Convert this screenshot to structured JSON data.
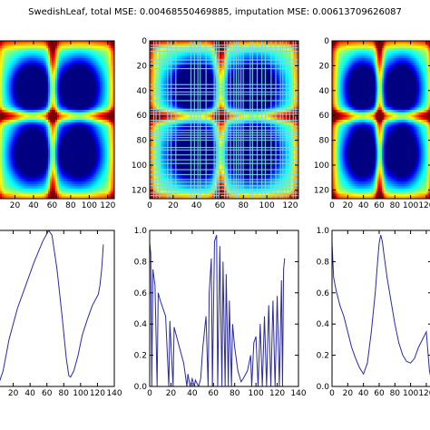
{
  "figure": {
    "title": "SwedishLeaf, total MSE: 0.00468550469885, imputation MSE: 0.00613709626087"
  },
  "chart_data": [
    {
      "type": "heatmap",
      "panel": "top-left",
      "colormap": "jet",
      "grid": false,
      "xlim": [
        0,
        127
      ],
      "ylim": [
        127,
        0
      ],
      "xticks": [
        {
          "v": 0,
          "label": "0"
        },
        {
          "v": 20,
          "label": "20"
        },
        {
          "v": 40,
          "label": "40"
        },
        {
          "v": 60,
          "label": "60"
        },
        {
          "v": 80,
          "label": "80"
        },
        {
          "v": 100,
          "label": "100"
        },
        {
          "v": 120,
          "label": "120"
        }
      ],
      "yticks": [],
      "description": "smooth 128x128 recurrence matrix, low (blue) lobes centred near 40 and 90, high (red) bands near index 60 and at corners",
      "blobs": [
        {
          "cx": 38,
          "cy": 38,
          "s": 16,
          "a": 0.95
        },
        {
          "cx": 90,
          "cy": 38,
          "s": 17,
          "a": 0.92
        },
        {
          "cx": 38,
          "cy": 92,
          "s": 17,
          "a": 0.92
        },
        {
          "cx": 90,
          "cy": 92,
          "s": 17,
          "a": 0.95
        }
      ],
      "bands": [
        {
          "pos": 61,
          "w": 3.5,
          "a": 0.55
        },
        {
          "pos": 0,
          "w": 4,
          "a": 0.3
        },
        {
          "pos": 127,
          "w": 3,
          "a": 0.25
        }
      ],
      "base": 0.55
    },
    {
      "type": "heatmap",
      "panel": "top-middle",
      "colormap": "jet",
      "grid": false,
      "xlim": [
        0,
        127
      ],
      "ylim": [
        127,
        0
      ],
      "xticks": [
        {
          "v": 0,
          "label": "0"
        },
        {
          "v": 20,
          "label": "20"
        },
        {
          "v": 40,
          "label": "40"
        },
        {
          "v": 60,
          "label": "60"
        },
        {
          "v": 80,
          "label": "80"
        },
        {
          "v": 100,
          "label": "100"
        },
        {
          "v": 120,
          "label": "120"
        }
      ],
      "yticks": [
        {
          "v": 0,
          "label": "0"
        },
        {
          "v": 20,
          "label": "20"
        },
        {
          "v": 40,
          "label": "40"
        },
        {
          "v": 60,
          "label": "60"
        },
        {
          "v": 80,
          "label": "80"
        },
        {
          "v": 100,
          "label": "100"
        },
        {
          "v": 120,
          "label": "120"
        }
      ],
      "description": "same matrix with many missing-index stripes (light cyan/yellow lines)",
      "blobs": [
        {
          "cx": 38,
          "cy": 38,
          "s": 16,
          "a": 0.95
        },
        {
          "cx": 90,
          "cy": 38,
          "s": 17,
          "a": 0.92
        },
        {
          "cx": 38,
          "cy": 92,
          "s": 17,
          "a": 0.92
        },
        {
          "cx": 90,
          "cy": 92,
          "s": 17,
          "a": 0.95
        }
      ],
      "bands": [
        {
          "pos": 61,
          "w": 3.5,
          "a": 0.55
        },
        {
          "pos": 0,
          "w": 4,
          "a": 0.3
        },
        {
          "pos": 127,
          "w": 3,
          "a": 0.25
        }
      ],
      "base": 0.55,
      "stripes": [
        3,
        5,
        8,
        15,
        18,
        22,
        35,
        38,
        41,
        43,
        48,
        55,
        57,
        59,
        64,
        66,
        69,
        72,
        74,
        76,
        78,
        80,
        86,
        88,
        92,
        96,
        99,
        104,
        108,
        112,
        114,
        117,
        120,
        123,
        125
      ]
    },
    {
      "type": "heatmap",
      "panel": "top-right",
      "colormap": "jet",
      "grid": false,
      "xlim": [
        0,
        127
      ],
      "ylim": [
        127,
        0
      ],
      "xticks": [
        {
          "v": 0,
          "label": "0"
        },
        {
          "v": 20,
          "label": "20"
        },
        {
          "v": 40,
          "label": "40"
        },
        {
          "v": 60,
          "label": "60"
        },
        {
          "v": 80,
          "label": "80"
        },
        {
          "v": 100,
          "label": "100"
        },
        {
          "v": 120,
          "label": "120"
        }
      ],
      "yticks": [
        {
          "v": 0,
          "label": "0"
        },
        {
          "v": 20,
          "label": "20"
        },
        {
          "v": 40,
          "label": "40"
        },
        {
          "v": 60,
          "label": "60"
        },
        {
          "v": 80,
          "label": "80"
        },
        {
          "v": 100,
          "label": "100"
        },
        {
          "v": 120,
          "label": "120"
        }
      ],
      "description": "imputed smooth recurrence matrix",
      "blobs": [
        {
          "cx": 38,
          "cy": 38,
          "s": 16,
          "a": 0.95
        },
        {
          "cx": 90,
          "cy": 38,
          "s": 17,
          "a": 0.92
        },
        {
          "cx": 38,
          "cy": 92,
          "s": 17,
          "a": 0.92
        },
        {
          "cx": 90,
          "cy": 92,
          "s": 17,
          "a": 0.95
        }
      ],
      "bands": [
        {
          "pos": 61,
          "w": 3.5,
          "a": 0.55
        },
        {
          "pos": 0,
          "w": 4,
          "a": 0.3
        },
        {
          "pos": 127,
          "w": 3,
          "a": 0.25
        }
      ],
      "base": 0.55
    },
    {
      "type": "line",
      "panel": "bottom-left",
      "grid": false,
      "color": "#2b2ba0",
      "xlim": [
        0,
        140
      ],
      "ylim": [
        0,
        1.0
      ],
      "xticks": [
        {
          "v": 0,
          "label": "0"
        },
        {
          "v": 20,
          "label": "20"
        },
        {
          "v": 40,
          "label": "40"
        },
        {
          "v": 60,
          "label": "60"
        },
        {
          "v": 80,
          "label": "80"
        },
        {
          "v": 100,
          "label": "100"
        },
        {
          "v": 120,
          "label": "120"
        },
        {
          "v": 140,
          "label": "140"
        }
      ],
      "yticks": [],
      "points": [
        [
          0,
          0.0
        ],
        [
          3,
          0.02
        ],
        [
          8,
          0.1
        ],
        [
          15,
          0.3
        ],
        [
          25,
          0.5
        ],
        [
          35,
          0.65
        ],
        [
          45,
          0.8
        ],
        [
          55,
          0.93
        ],
        [
          62,
          1.0
        ],
        [
          66,
          0.97
        ],
        [
          72,
          0.75
        ],
        [
          78,
          0.45
        ],
        [
          83,
          0.18
        ],
        [
          86,
          0.07
        ],
        [
          88,
          0.06
        ],
        [
          92,
          0.1
        ],
        [
          97,
          0.2
        ],
        [
          102,
          0.33
        ],
        [
          108,
          0.43
        ],
        [
          114,
          0.52
        ],
        [
          118,
          0.56
        ],
        [
          121,
          0.59
        ],
        [
          123,
          0.65
        ],
        [
          125,
          0.75
        ],
        [
          127,
          0.91
        ]
      ]
    },
    {
      "type": "line",
      "panel": "bottom-middle",
      "grid": false,
      "color": "#2b2ba0",
      "xlim": [
        0,
        140
      ],
      "ylim": [
        0,
        1.0
      ],
      "xticks": [
        {
          "v": 0,
          "label": "0"
        },
        {
          "v": 20,
          "label": "20"
        },
        {
          "v": 40,
          "label": "40"
        },
        {
          "v": 60,
          "label": "60"
        },
        {
          "v": 80,
          "label": "80"
        },
        {
          "v": 100,
          "label": "100"
        },
        {
          "v": 120,
          "label": "120"
        },
        {
          "v": 140,
          "label": "140"
        }
      ],
      "yticks": [
        {
          "v": 0,
          "label": "0.0"
        },
        {
          "v": 0.2,
          "label": "0.2"
        },
        {
          "v": 0.4,
          "label": "0.4"
        },
        {
          "v": 0.6,
          "label": "0.6"
        },
        {
          "v": 0.8,
          "label": "0.8"
        },
        {
          "v": 1.0,
          "label": "1.0"
        }
      ],
      "points": [
        [
          0,
          0.92
        ],
        [
          1,
          0.85
        ],
        [
          2,
          0.0
        ],
        [
          3,
          0.75
        ],
        [
          5,
          0.65
        ],
        [
          7,
          0.0
        ],
        [
          8,
          0.6
        ],
        [
          10,
          0.55
        ],
        [
          15,
          0.45
        ],
        [
          18,
          0.0
        ],
        [
          19,
          0.42
        ],
        [
          22,
          0.0
        ],
        [
          23,
          0.38
        ],
        [
          28,
          0.25
        ],
        [
          32,
          0.15
        ],
        [
          35,
          0.0
        ],
        [
          36,
          0.08
        ],
        [
          38,
          0.0
        ],
        [
          40,
          0.05
        ],
        [
          42,
          0.0
        ],
        [
          43,
          0.04
        ],
        [
          46,
          0.0
        ],
        [
          48,
          0.05
        ],
        [
          50,
          0.25
        ],
        [
          53,
          0.45
        ],
        [
          55,
          0.0
        ],
        [
          56,
          0.6
        ],
        [
          58,
          0.82
        ],
        [
          59,
          0.0
        ],
        [
          61,
          0.93
        ],
        [
          63,
          0.97
        ],
        [
          64,
          0.0
        ],
        [
          66,
          0.9
        ],
        [
          68,
          0.0
        ],
        [
          69,
          0.8
        ],
        [
          71,
          0.0
        ],
        [
          72,
          0.72
        ],
        [
          74,
          0.0
        ],
        [
          75,
          0.55
        ],
        [
          77,
          0.0
        ],
        [
          78,
          0.4
        ],
        [
          80,
          0.25
        ],
        [
          83,
          0.1
        ],
        [
          86,
          0.03
        ],
        [
          88,
          0.05
        ],
        [
          92,
          0.1
        ],
        [
          95,
          0.2
        ],
        [
          96,
          0.0
        ],
        [
          98,
          0.28
        ],
        [
          100,
          0.32
        ],
        [
          102,
          0.0
        ],
        [
          104,
          0.4
        ],
        [
          106,
          0.0
        ],
        [
          108,
          0.45
        ],
        [
          110,
          0.0
        ],
        [
          112,
          0.52
        ],
        [
          114,
          0.0
        ],
        [
          116,
          0.55
        ],
        [
          118,
          0.0
        ],
        [
          120,
          0.58
        ],
        [
          122,
          0.0
        ],
        [
          124,
          0.68
        ],
        [
          125,
          0.0
        ],
        [
          126,
          0.75
        ],
        [
          127,
          0.82
        ]
      ]
    },
    {
      "type": "line",
      "panel": "bottom-right",
      "grid": false,
      "color": "#2b2ba0",
      "xlim": [
        0,
        127
      ],
      "ylim": [
        0,
        1.0
      ],
      "xticks": [
        {
          "v": 0,
          "label": "0"
        },
        {
          "v": 20,
          "label": "20"
        },
        {
          "v": 40,
          "label": "40"
        },
        {
          "v": 60,
          "label": "60"
        },
        {
          "v": 80,
          "label": "80"
        },
        {
          "v": 100,
          "label": "100"
        },
        {
          "v": 120,
          "label": "120"
        }
      ],
      "yticks": [
        {
          "v": 0,
          "label": "0.0"
        },
        {
          "v": 0.2,
          "label": "0.2"
        },
        {
          "v": 0.4,
          "label": "0.4"
        },
        {
          "v": 0.6,
          "label": "0.6"
        },
        {
          "v": 0.8,
          "label": "0.8"
        },
        {
          "v": 1.0,
          "label": "1.0"
        }
      ],
      "points": [
        [
          0,
          0.92
        ],
        [
          2,
          0.7
        ],
        [
          5,
          0.62
        ],
        [
          10,
          0.52
        ],
        [
          15,
          0.45
        ],
        [
          20,
          0.35
        ],
        [
          25,
          0.25
        ],
        [
          30,
          0.18
        ],
        [
          35,
          0.12
        ],
        [
          40,
          0.08
        ],
        [
          45,
          0.15
        ],
        [
          50,
          0.35
        ],
        [
          55,
          0.6
        ],
        [
          58,
          0.8
        ],
        [
          60,
          0.92
        ],
        [
          62,
          0.97
        ],
        [
          64,
          0.93
        ],
        [
          66,
          0.85
        ],
        [
          70,
          0.7
        ],
        [
          75,
          0.55
        ],
        [
          80,
          0.4
        ],
        [
          85,
          0.28
        ],
        [
          90,
          0.2
        ],
        [
          95,
          0.16
        ],
        [
          100,
          0.15
        ],
        [
          105,
          0.18
        ],
        [
          110,
          0.25
        ],
        [
          115,
          0.3
        ],
        [
          120,
          0.35
        ],
        [
          124,
          0.1
        ],
        [
          126,
          0.05
        ],
        [
          127,
          0.04
        ]
      ]
    }
  ]
}
